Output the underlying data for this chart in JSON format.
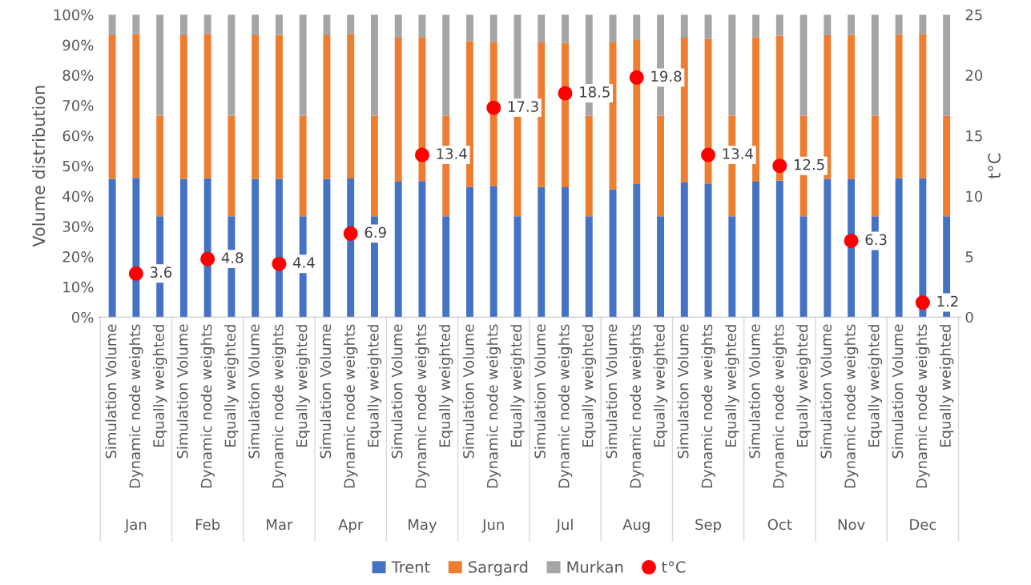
{
  "chart_data": {
    "type": "bar",
    "stacked": true,
    "ylabel": "Volume distribution",
    "y2label": "t°C",
    "categories": [
      "Simulation Volume",
      "Dynamic node weights",
      "Equally weighted",
      "Simulation Volume",
      "Dynamic node weights",
      "Equally weighted",
      "Simulation Volume",
      "Dynamic node weights",
      "Equally weighted",
      "Simulation Volume",
      "Dynamic node weights",
      "Equally weighted",
      "Simulation Volume",
      "Dynamic node weights",
      "Equally weighted",
      "Simulation Volume",
      "Dynamic node weights",
      "Equally weighted",
      "Simulation Volume",
      "Dynamic node weights",
      "Equally weighted",
      "Simulation Volume",
      "Dynamic node weights",
      "Equally weighted",
      "Simulation Volume",
      "Dynamic node weights",
      "Equally weighted",
      "Simulation Volume",
      "Dynamic node weights",
      "Equally weighted",
      "Simulation Volume",
      "Dynamic node weights",
      "Equally weighted",
      "Simulation Volume",
      "Dynamic node weights",
      "Equally weighted"
    ],
    "annotations": [
      "Jan",
      "Feb",
      "Mar",
      "Apr",
      "May",
      "Jun",
      "Jul",
      "Aug",
      "Sep",
      "Oct",
      "Nov",
      "Dec"
    ],
    "series": [
      {
        "name": "Trent",
        "color": "#4472c4",
        "values": [
          45.7,
          46,
          33.3,
          45.7,
          45.9,
          33.3,
          45.7,
          45.7,
          33.3,
          45.7,
          45.8,
          33.3,
          44.8,
          45,
          33.3,
          43,
          43.4,
          33.3,
          43,
          42.9,
          33.3,
          42.2,
          44,
          33.3,
          44.6,
          44.2,
          33.3,
          44.8,
          45.1,
          33.3,
          45.7,
          45.7,
          33.3,
          45.9,
          45.9,
          33.3
        ]
      },
      {
        "name": "Sargard",
        "color": "#ed7d31",
        "values": [
          47.5,
          47.5,
          33.3,
          47.5,
          47.6,
          33.3,
          47.5,
          47.6,
          33.3,
          47.5,
          47.8,
          33.3,
          47.6,
          47.6,
          33.3,
          48.2,
          47.6,
          33.3,
          47.8,
          47.8,
          33.3,
          48.6,
          47.6,
          33.3,
          47.8,
          47.8,
          33.3,
          47.7,
          47.9,
          33.3,
          47.5,
          47.6,
          33.3,
          47.5,
          47.7,
          33.3
        ]
      },
      {
        "name": "Murkan",
        "color": "#a5a5a5",
        "values": [
          6.8,
          6.5,
          33.4,
          6.8,
          6.5,
          33.4,
          6.8,
          6.7,
          33.4,
          6.8,
          6.4,
          33.4,
          7.6,
          7.4,
          33.4,
          8.8,
          9,
          33.4,
          9.2,
          9.3,
          33.4,
          9.2,
          8.4,
          33.4,
          7.6,
          8,
          33.4,
          7.5,
          7,
          33.4,
          6.8,
          6.7,
          33.4,
          6.6,
          6.4,
          33.4
        ]
      },
      {
        "name": "t°C",
        "type": "scatter",
        "axis": "y2",
        "color": "#ff0000",
        "marker": "circle",
        "values": [
          null,
          3.6,
          null,
          null,
          4.8,
          null,
          null,
          4.4,
          null,
          null,
          6.9,
          null,
          null,
          13.4,
          null,
          null,
          17.3,
          null,
          null,
          18.5,
          null,
          null,
          19.8,
          null,
          null,
          13.4,
          null,
          null,
          12.5,
          null,
          null,
          6.3,
          null,
          null,
          1.2,
          null
        ],
        "value_labels": [
          null,
          "3.6",
          null,
          null,
          "4.8",
          null,
          null,
          "4.4",
          null,
          null,
          "6.9",
          null,
          null,
          "13.4",
          null,
          null,
          "17.3",
          null,
          null,
          "18.5",
          null,
          null,
          "19.8",
          null,
          null,
          "13.4",
          null,
          null,
          "12.5",
          null,
          null,
          "6.3",
          null,
          null,
          "1.2",
          null
        ]
      }
    ],
    "ylim": [
      0,
      100
    ],
    "yticks": [
      {
        "value": 0,
        "label": "0%"
      },
      {
        "value": 10,
        "label": "10%"
      },
      {
        "value": 20,
        "label": "20%"
      },
      {
        "value": 30,
        "label": "30%"
      },
      {
        "value": 40,
        "label": "40%"
      },
      {
        "value": 50,
        "label": "50%"
      },
      {
        "value": 60,
        "label": "60%"
      },
      {
        "value": 70,
        "label": "70%"
      },
      {
        "value": 80,
        "label": "80%"
      },
      {
        "value": 90,
        "label": "90%"
      },
      {
        "value": 100,
        "label": "100%"
      }
    ],
    "y2lim": [
      0,
      25
    ],
    "y2ticks": [
      0,
      5,
      10,
      15,
      20,
      25
    ],
    "grid": false,
    "legend": "bottom"
  }
}
